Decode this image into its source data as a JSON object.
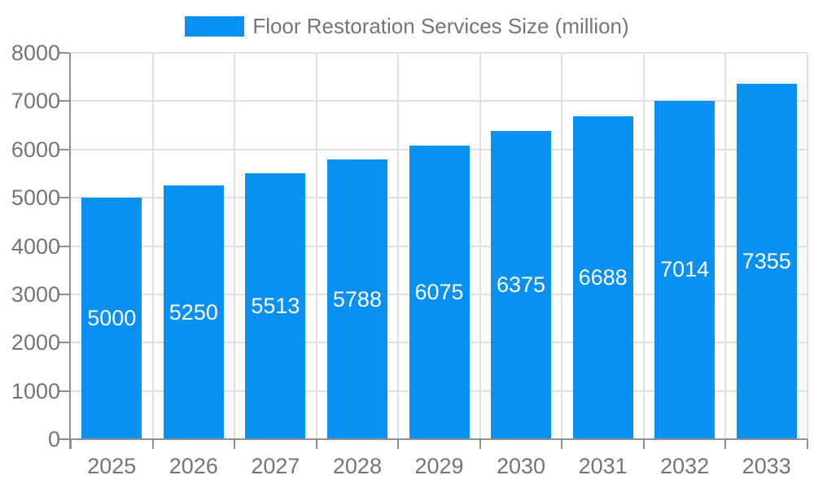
{
  "chart_data": {
    "type": "bar",
    "title": "Floor Restoration Services Size (million)",
    "legend_position": "top",
    "categories": [
      "2025",
      "2026",
      "2027",
      "2028",
      "2029",
      "2030",
      "2031",
      "2032",
      "2033"
    ],
    "series": [
      {
        "name": "Floor Restoration Services Size (million)",
        "values": [
          5000,
          5250,
          5513,
          5788,
          6075,
          6375,
          6688,
          7014,
          7355
        ]
      }
    ],
    "value_labels": [
      "5000",
      "5250",
      "5513",
      "5788",
      "6075",
      "6375",
      "6688",
      "7014",
      "7355"
    ],
    "xlabel": "",
    "ylabel": "",
    "ylim": [
      0,
      8000
    ],
    "ytick_step": 1000,
    "ytick_labels": [
      "0",
      "1000",
      "2000",
      "3000",
      "4000",
      "5000",
      "6000",
      "7000",
      "8000"
    ],
    "grid": true,
    "colors": {
      "bar": "#0a8ff2",
      "grid": "#e0e0e0",
      "axis": "#8f8f8f",
      "tick": "#8f8f8f",
      "axis_text": "#757575",
      "value_label_text": "#ffffff",
      "background": "#ffffff"
    }
  }
}
